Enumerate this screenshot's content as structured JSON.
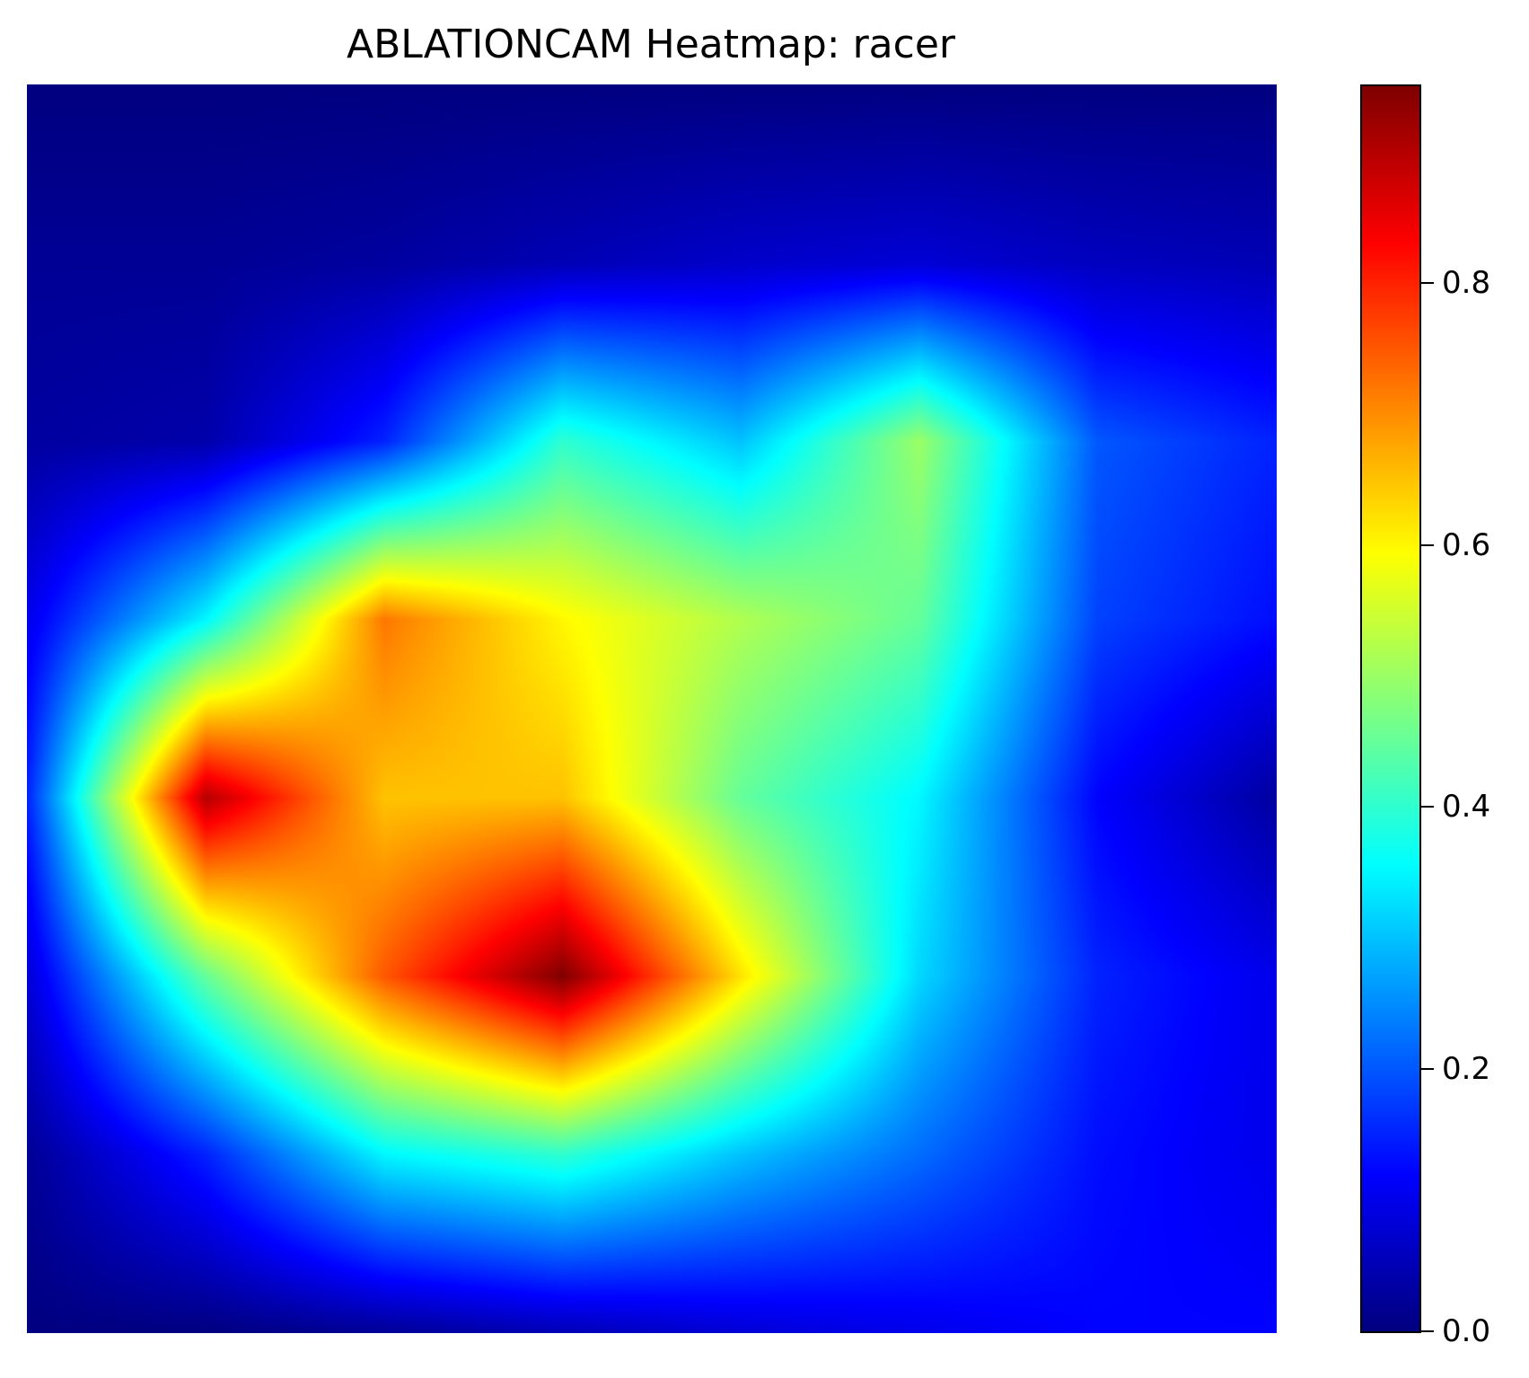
{
  "title": "ABLATIONCAM Heatmap: racer",
  "chart_data": {
    "type": "heatmap",
    "title": "ABLATIONCAM Heatmap: racer",
    "xlabel": "",
    "ylabel": "",
    "colormap": "jet",
    "axes_visible": false,
    "colorbar": {
      "min": 0.0,
      "max": 0.95,
      "ticks": [
        0.0,
        0.2,
        0.4,
        0.6,
        0.8
      ],
      "tick_labels": [
        "0.0",
        "0.2",
        "0.4",
        "0.6",
        "0.8"
      ]
    },
    "grid": [
      [
        0.0,
        0.0,
        0.0,
        0.0,
        0.0,
        0.0,
        0.0,
        0.0
      ],
      [
        0.02,
        0.02,
        0.03,
        0.05,
        0.07,
        0.08,
        0.06,
        0.05
      ],
      [
        0.03,
        0.04,
        0.15,
        0.4,
        0.3,
        0.5,
        0.2,
        0.15
      ],
      [
        0.1,
        0.35,
        0.72,
        0.6,
        0.52,
        0.45,
        0.18,
        0.13
      ],
      [
        0.15,
        0.9,
        0.65,
        0.65,
        0.45,
        0.35,
        0.12,
        0.03
      ],
      [
        0.08,
        0.45,
        0.75,
        0.95,
        0.62,
        0.32,
        0.15,
        0.1
      ],
      [
        0.02,
        0.15,
        0.35,
        0.4,
        0.3,
        0.22,
        0.13,
        0.1
      ],
      [
        0.0,
        0.0,
        0.02,
        0.05,
        0.08,
        0.1,
        0.12,
        0.12
      ]
    ]
  }
}
